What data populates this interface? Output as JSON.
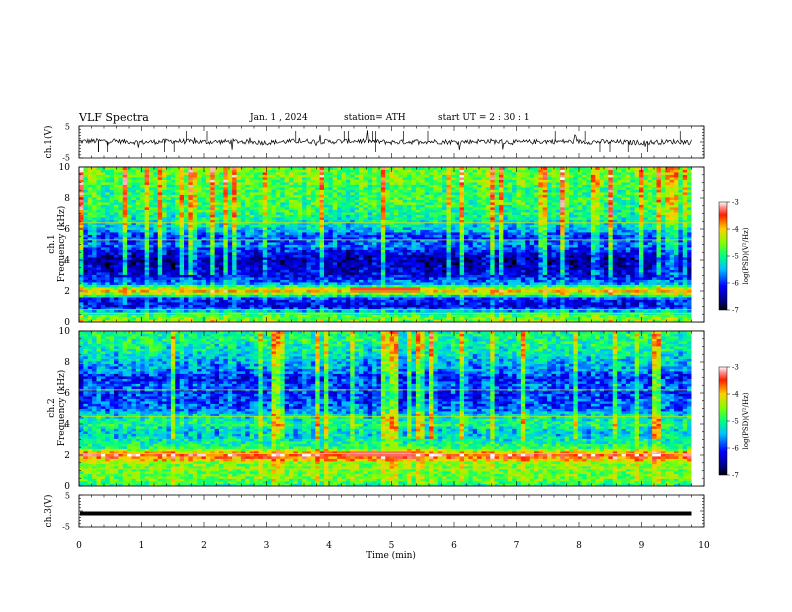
{
  "header": {
    "title": "VLF  Spectra",
    "date": "Jan.  1  , 2024",
    "station": "station= ATH",
    "start": "start  UT  =   2  : 30 : 1"
  },
  "chart_data": [
    {
      "type": "line",
      "panel": "ch1-waveform",
      "ylabel": "ch.1(V)",
      "ylim": [
        -5,
        5
      ],
      "yticks": [
        "5",
        "-5"
      ],
      "x": [
        0,
        0.5,
        1,
        1.5,
        2,
        2.5,
        3,
        3.5,
        4,
        4.5,
        5,
        5.5,
        6,
        6.5,
        7,
        7.5,
        8,
        8.5,
        9,
        9.5,
        9.8
      ],
      "y": [
        0.2,
        0.4,
        -0.1,
        0.3,
        0.0,
        0.2,
        -0.2,
        0.3,
        0.1,
        0.4,
        -0.1,
        0.2,
        0.0,
        0.3,
        -0.1,
        0.2,
        0.1,
        0.0,
        -0.2,
        0.1,
        0.0
      ],
      "color": "#000000"
    },
    {
      "type": "heatmap",
      "panel": "ch1-spectrogram",
      "ylabel": "ch.1\nFrequency  (kHz)",
      "ylim": [
        0,
        10
      ],
      "yticks": [
        "0",
        "2",
        "4",
        "6",
        "8",
        "10"
      ],
      "xlim": [
        0,
        10
      ],
      "data_end_min": 9.8,
      "band_levels_kHz": [
        0,
        0.5,
        1,
        1.5,
        2,
        2.5,
        3,
        3.5,
        4,
        4.5,
        5,
        5.5,
        6,
        6.5,
        7,
        7.5,
        8,
        8.5,
        9,
        9.5,
        10
      ],
      "band_log_psd": [
        -4.5,
        -4.8,
        -6.3,
        -6.1,
        -3.8,
        -5.6,
        -6.2,
        -6.4,
        -6.5,
        -6.2,
        -5.7,
        -6.0,
        -5.4,
        -5.2,
        -5.0,
        -4.9,
        -4.8,
        -4.9,
        -4.7,
        -4.6,
        -4.6
      ]
    },
    {
      "type": "heatmap",
      "panel": "ch2-spectrogram",
      "ylabel": "ch.2\nFrequency  (kHz)",
      "ylim": [
        0,
        10
      ],
      "yticks": [
        "0",
        "2",
        "4",
        "6",
        "8",
        "10"
      ],
      "xlim": [
        0,
        10
      ],
      "data_end_min": 9.8,
      "band_levels_kHz": [
        0,
        0.5,
        1,
        1.5,
        2,
        2.5,
        3,
        3.5,
        4,
        4.5,
        5,
        5.5,
        6,
        6.5,
        7,
        7.5,
        8,
        8.5,
        9,
        9.5,
        10
      ],
      "band_log_psd": [
        -5.0,
        -4.6,
        -4.6,
        -4.5,
        -3.4,
        -4.9,
        -5.2,
        -5.4,
        -5.0,
        -5.2,
        -5.8,
        -5.9,
        -6.0,
        -5.8,
        -6.1,
        -5.6,
        -5.5,
        -5.3,
        -5.1,
        -5.0,
        -5.0
      ]
    },
    {
      "type": "line",
      "panel": "ch3-waveform",
      "ylabel": "ch.3(V)",
      "ylim": [
        -5,
        5
      ],
      "yticks": [
        "5",
        "-5"
      ],
      "x": [
        0,
        9.8
      ],
      "y": [
        -0.8,
        -0.8
      ],
      "color": "#000000"
    }
  ],
  "colorbar": {
    "label": "log(PSD)(V²/Hz)",
    "range": [
      -7,
      -3
    ],
    "ticks": [
      "-3",
      "-4",
      "-5",
      "-6",
      "-7"
    ]
  },
  "xaxis": {
    "label": "Time  (min)",
    "range": [
      0,
      10
    ],
    "ticks": [
      "0",
      "1",
      "2",
      "3",
      "4",
      "5",
      "6",
      "7",
      "8",
      "9",
      "10"
    ]
  }
}
